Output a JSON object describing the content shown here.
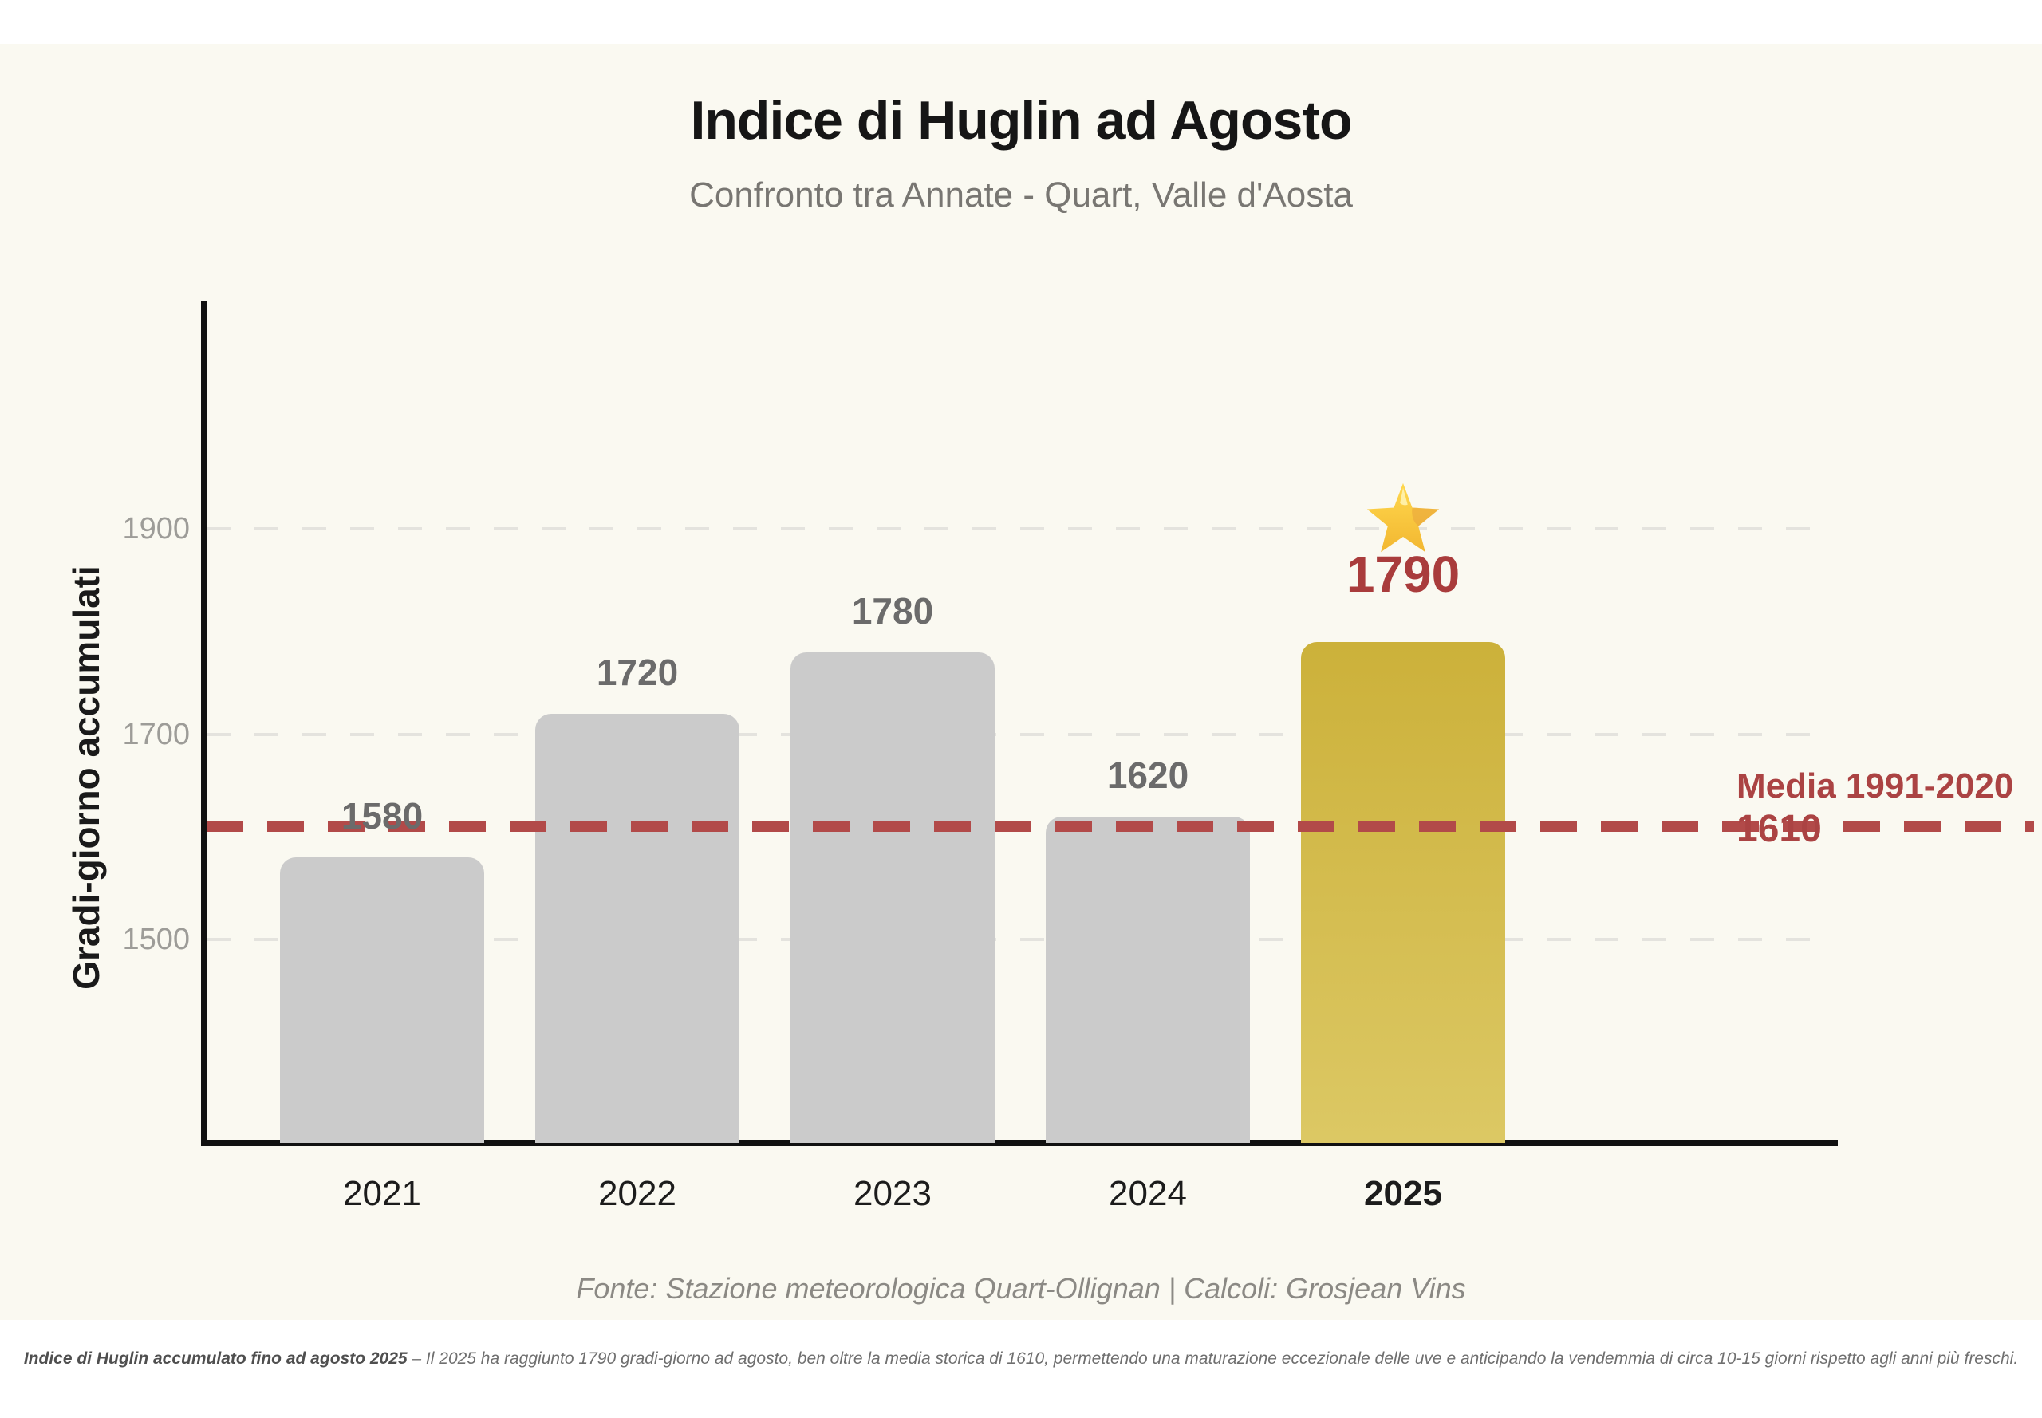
{
  "page": {
    "title": "Indice di Huglin ad Agosto",
    "subtitle": "Confronto tra Annate - Quart, Valle d'Aosta",
    "source": "Fonte: Stazione meteorologica Quart-Ollignan | Calcoli: Grosjean Vins",
    "caption_bold": "Indice di Huglin accumulato fino ad agosto 2025",
    "caption_rest": " – Il 2025 ha raggiunto 1790 gradi-giorno ad agosto, ben oltre la media storica di 1610, permettendo una maturazione eccezionale delle uve e anticipando la vendemmia di circa 10-15 giorni rispetto agli anni più freschi."
  },
  "chart_data": {
    "type": "bar",
    "title": "Indice di Huglin ad Agosto",
    "subtitle": "Confronto tra Annate - Quart, Valle d'Aosta",
    "ylabel": "Gradi-giorno accumulati",
    "xlabel": "",
    "categories": [
      "2021",
      "2022",
      "2023",
      "2024",
      "2025"
    ],
    "values": [
      1580,
      1720,
      1780,
      1620,
      1790
    ],
    "yticks": [
      1500,
      1700,
      1900
    ],
    "ylim": [
      1300,
      2120
    ],
    "grid": "dashed-horizontal",
    "legend": "none",
    "bar_color": "#cbcbcb",
    "value_label_color": "#6b6b6b",
    "highlight": {
      "category": "2025",
      "value": 1790,
      "color_top": "#ccb13a",
      "color_bottom": "#dcc864",
      "value_color": "#a93c3c",
      "star": true
    },
    "reference_line": {
      "label": "Media 1991-2020",
      "value_label": "1610",
      "value": 1610,
      "color": "#b24a49",
      "style": "dashed"
    }
  },
  "colors": {
    "background": "#faf9f1",
    "strip": "#ffffff",
    "axis": "#111111",
    "gridline": "#e4e3de",
    "accent_red": "#ab4343",
    "accent_gold": "#d3ba45",
    "star_gold": "#ffc93c"
  }
}
